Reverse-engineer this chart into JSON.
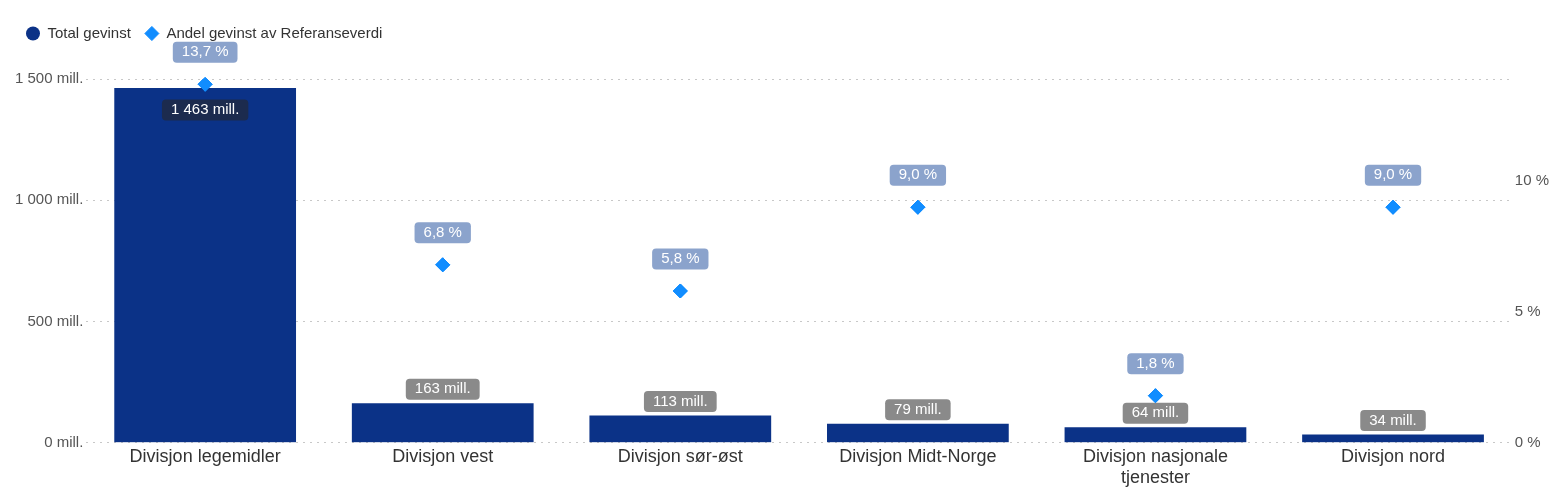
{
  "chart_data": {
    "type": "bar",
    "legend": "top left",
    "grid": "y",
    "marker": "diamond",
    "categories": [
      "Divisjon legemidler",
      "Divisjon vest",
      "Divisjon sør-øst",
      "Divisjon Midt-Norge",
      "Divisjon nasjonale tjenester",
      "Divisjon nord"
    ],
    "series": [
      {
        "name": "Total gevinst",
        "color": "#0b3287",
        "values": [
          1463,
          163,
          113,
          79,
          64,
          34
        ],
        "value_labels": [
          "1 463 mill.",
          "163 mill.",
          "113 mill.",
          "79 mill.",
          "64 mill.",
          "34 mill."
        ]
      },
      {
        "name": "Andel gevinst av Referanseverdi",
        "type": "scatter",
        "axis": "y2",
        "color": "#118dff",
        "values": [
          13.7,
          6.8,
          5.8,
          9.0,
          1.8,
          9.0
        ],
        "value_labels": [
          "13,7 %",
          "6,8 %",
          "5,8 %",
          "9,0 %",
          "1,8 %",
          "9,0 %"
        ]
      }
    ],
    "ylim": [
      0,
      1500
    ],
    "yticks": [
      {
        "value": 0,
        "label": "0 mill."
      },
      {
        "value": 500,
        "label": "500 mill."
      },
      {
        "value": 1000,
        "label": "1 000 mill."
      },
      {
        "value": 1500,
        "label": "1 500 mill."
      }
    ],
    "y2lim": [
      0,
      13.9
    ],
    "y2ticks": [
      {
        "value": 0,
        "label": "0 %"
      },
      {
        "value": 5,
        "label": "5 %"
      },
      {
        "value": 10,
        "label": "10 %"
      }
    ]
  }
}
